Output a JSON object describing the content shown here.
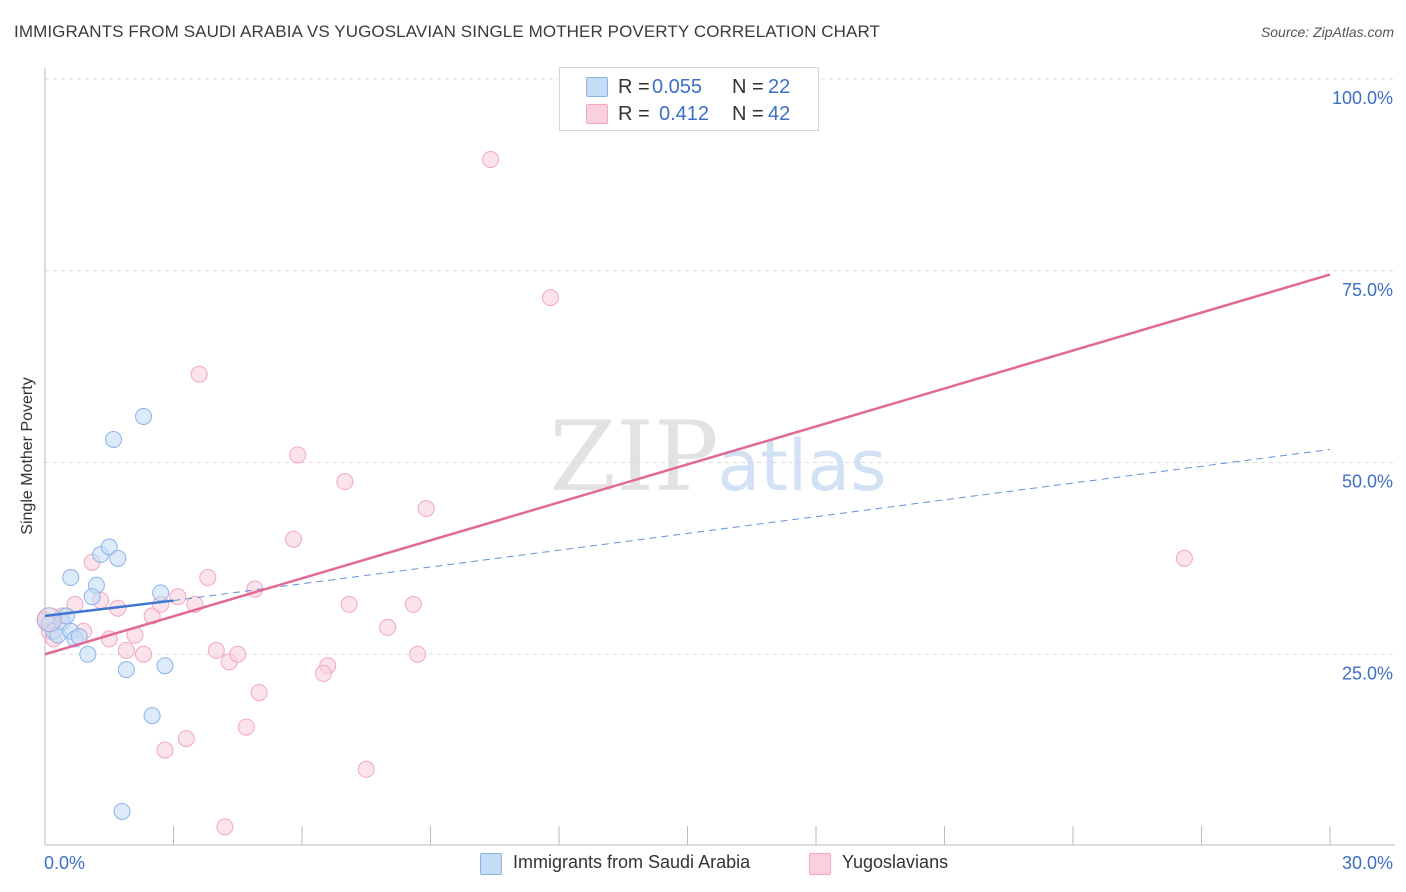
{
  "title": "IMMIGRANTS FROM SAUDI ARABIA VS YUGOSLAVIAN SINGLE MOTHER POVERTY CORRELATION CHART",
  "source": "Source: ZipAtlas.com",
  "watermark": {
    "zip": "ZIP",
    "atlas": "atlas"
  },
  "legend": {
    "rows": [
      {
        "r_label": "R =",
        "r_value": "0.055",
        "n_label": "N =",
        "n_value": "22"
      },
      {
        "r_label": "R =",
        "r_value": "0.412",
        "n_label": "N =",
        "n_value": "42"
      }
    ]
  },
  "chart_data": {
    "type": "scatter",
    "title": "IMMIGRANTS FROM SAUDI ARABIA VS YUGOSLAVIAN SINGLE MOTHER POVERTY CORRELATION CHART",
    "xlabel": "",
    "ylabel": "Single Mother Poverty",
    "xlim": [
      0,
      30
    ],
    "ylim": [
      0,
      100
    ],
    "x_tick_labels": [
      "0.0%",
      "30.0%"
    ],
    "y_tick_labels": [
      "25.0%",
      "50.0%",
      "75.0%",
      "100.0%"
    ],
    "y_ticks": [
      25,
      50,
      75,
      100
    ],
    "grid": true,
    "series": [
      {
        "name": "Immigrants from Saudi Arabia",
        "color": "#8ab4e8",
        "fill": "#c5dcf6",
        "line_color": "#3c78d0",
        "R": 0.055,
        "N": 22,
        "trend": {
          "x0": 0,
          "y0": 30.0,
          "x1": 3.0,
          "y1": 32.0,
          "x_dash_end": 30,
          "y_dash_end": 51.7
        },
        "points": [
          [
            0.1,
            29.0
          ],
          [
            0.2,
            28.0
          ],
          [
            0.3,
            27.5
          ],
          [
            0.4,
            29.2
          ],
          [
            0.5,
            30.0
          ],
          [
            0.6,
            28.0
          ],
          [
            0.7,
            27.0
          ],
          [
            0.8,
            27.3
          ],
          [
            1.0,
            25.0
          ],
          [
            0.6,
            35.0
          ],
          [
            1.2,
            34.0
          ],
          [
            1.1,
            32.5
          ],
          [
            1.3,
            38.0
          ],
          [
            1.5,
            39.0
          ],
          [
            1.7,
            37.5
          ],
          [
            1.6,
            53.0
          ],
          [
            2.3,
            56.0
          ],
          [
            2.7,
            33.0
          ],
          [
            1.9,
            23.0
          ],
          [
            2.8,
            23.5
          ],
          [
            2.5,
            17.0
          ],
          [
            1.8,
            4.5
          ]
        ]
      },
      {
        "name": "Yugoslavians",
        "color": "#f2a7bf",
        "fill": "#f9d0dd",
        "line_color": "#e06a95",
        "R": 0.412,
        "N": 42,
        "trend": {
          "x0": 0,
          "y0": 25.0,
          "x1": 30,
          "y1": 74.5
        },
        "points": [
          [
            0.0,
            29.5
          ],
          [
            0.1,
            28.0
          ],
          [
            0.2,
            27.0
          ],
          [
            0.4,
            30.0
          ],
          [
            0.7,
            31.5
          ],
          [
            0.9,
            28.0
          ],
          [
            1.1,
            37.0
          ],
          [
            1.3,
            32.0
          ],
          [
            1.5,
            27.0
          ],
          [
            1.7,
            31.0
          ],
          [
            1.9,
            25.5
          ],
          [
            2.1,
            27.5
          ],
          [
            2.3,
            25.0
          ],
          [
            2.5,
            30.0
          ],
          [
            2.7,
            31.5
          ],
          [
            3.1,
            32.5
          ],
          [
            3.5,
            31.5
          ],
          [
            3.8,
            35.0
          ],
          [
            4.0,
            25.5
          ],
          [
            4.3,
            24.0
          ],
          [
            4.5,
            25.0
          ],
          [
            4.9,
            33.5
          ],
          [
            5.0,
            20.0
          ],
          [
            3.6,
            61.5
          ],
          [
            5.9,
            51.0
          ],
          [
            5.8,
            40.0
          ],
          [
            7.0,
            47.5
          ],
          [
            7.1,
            31.5
          ],
          [
            8.0,
            28.5
          ],
          [
            8.6,
            31.5
          ],
          [
            8.7,
            25.0
          ],
          [
            8.9,
            44.0
          ],
          [
            6.6,
            23.5
          ],
          [
            6.5,
            22.5
          ],
          [
            4.7,
            15.5
          ],
          [
            3.3,
            14.0
          ],
          [
            2.8,
            12.5
          ],
          [
            7.5,
            10.0
          ],
          [
            4.2,
            2.5
          ],
          [
            10.4,
            89.5
          ],
          [
            11.8,
            71.5
          ],
          [
            26.6,
            37.5
          ]
        ]
      }
    ]
  }
}
